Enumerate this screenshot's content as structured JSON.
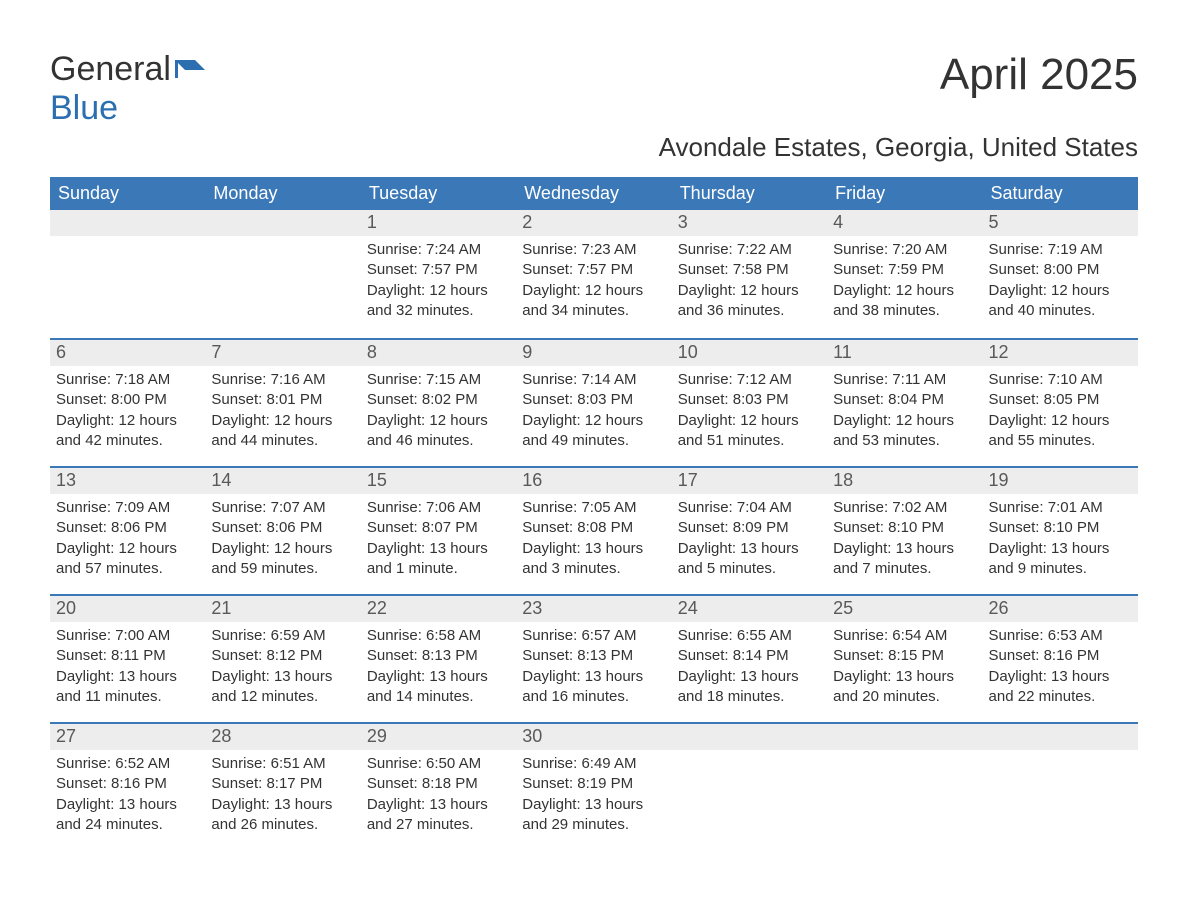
{
  "logo": {
    "text1": "General",
    "text2": "Blue"
  },
  "title": "April 2025",
  "location": "Avondale Estates, Georgia, United States",
  "colors": {
    "header_bg": "#3b78b8",
    "header_text": "#ffffff",
    "daynum_bg": "#ededed",
    "daynum_text": "#595959",
    "body_text": "#333333",
    "week_border": "#3b78b8",
    "page_bg": "#ffffff",
    "logo_accent": "#2b6fb0"
  },
  "day_headers": [
    "Sunday",
    "Monday",
    "Tuesday",
    "Wednesday",
    "Thursday",
    "Friday",
    "Saturday"
  ],
  "weeks": [
    [
      null,
      null,
      {
        "n": "1",
        "sr": "Sunrise: 7:24 AM",
        "ss": "Sunset: 7:57 PM",
        "dl": "Daylight: 12 hours and 32 minutes."
      },
      {
        "n": "2",
        "sr": "Sunrise: 7:23 AM",
        "ss": "Sunset: 7:57 PM",
        "dl": "Daylight: 12 hours and 34 minutes."
      },
      {
        "n": "3",
        "sr": "Sunrise: 7:22 AM",
        "ss": "Sunset: 7:58 PM",
        "dl": "Daylight: 12 hours and 36 minutes."
      },
      {
        "n": "4",
        "sr": "Sunrise: 7:20 AM",
        "ss": "Sunset: 7:59 PM",
        "dl": "Daylight: 12 hours and 38 minutes."
      },
      {
        "n": "5",
        "sr": "Sunrise: 7:19 AM",
        "ss": "Sunset: 8:00 PM",
        "dl": "Daylight: 12 hours and 40 minutes."
      }
    ],
    [
      {
        "n": "6",
        "sr": "Sunrise: 7:18 AM",
        "ss": "Sunset: 8:00 PM",
        "dl": "Daylight: 12 hours and 42 minutes."
      },
      {
        "n": "7",
        "sr": "Sunrise: 7:16 AM",
        "ss": "Sunset: 8:01 PM",
        "dl": "Daylight: 12 hours and 44 minutes."
      },
      {
        "n": "8",
        "sr": "Sunrise: 7:15 AM",
        "ss": "Sunset: 8:02 PM",
        "dl": "Daylight: 12 hours and 46 minutes."
      },
      {
        "n": "9",
        "sr": "Sunrise: 7:14 AM",
        "ss": "Sunset: 8:03 PM",
        "dl": "Daylight: 12 hours and 49 minutes."
      },
      {
        "n": "10",
        "sr": "Sunrise: 7:12 AM",
        "ss": "Sunset: 8:03 PM",
        "dl": "Daylight: 12 hours and 51 minutes."
      },
      {
        "n": "11",
        "sr": "Sunrise: 7:11 AM",
        "ss": "Sunset: 8:04 PM",
        "dl": "Daylight: 12 hours and 53 minutes."
      },
      {
        "n": "12",
        "sr": "Sunrise: 7:10 AM",
        "ss": "Sunset: 8:05 PM",
        "dl": "Daylight: 12 hours and 55 minutes."
      }
    ],
    [
      {
        "n": "13",
        "sr": "Sunrise: 7:09 AM",
        "ss": "Sunset: 8:06 PM",
        "dl": "Daylight: 12 hours and 57 minutes."
      },
      {
        "n": "14",
        "sr": "Sunrise: 7:07 AM",
        "ss": "Sunset: 8:06 PM",
        "dl": "Daylight: 12 hours and 59 minutes."
      },
      {
        "n": "15",
        "sr": "Sunrise: 7:06 AM",
        "ss": "Sunset: 8:07 PM",
        "dl": "Daylight: 13 hours and 1 minute."
      },
      {
        "n": "16",
        "sr": "Sunrise: 7:05 AM",
        "ss": "Sunset: 8:08 PM",
        "dl": "Daylight: 13 hours and 3 minutes."
      },
      {
        "n": "17",
        "sr": "Sunrise: 7:04 AM",
        "ss": "Sunset: 8:09 PM",
        "dl": "Daylight: 13 hours and 5 minutes."
      },
      {
        "n": "18",
        "sr": "Sunrise: 7:02 AM",
        "ss": "Sunset: 8:10 PM",
        "dl": "Daylight: 13 hours and 7 minutes."
      },
      {
        "n": "19",
        "sr": "Sunrise: 7:01 AM",
        "ss": "Sunset: 8:10 PM",
        "dl": "Daylight: 13 hours and 9 minutes."
      }
    ],
    [
      {
        "n": "20",
        "sr": "Sunrise: 7:00 AM",
        "ss": "Sunset: 8:11 PM",
        "dl": "Daylight: 13 hours and 11 minutes."
      },
      {
        "n": "21",
        "sr": "Sunrise: 6:59 AM",
        "ss": "Sunset: 8:12 PM",
        "dl": "Daylight: 13 hours and 12 minutes."
      },
      {
        "n": "22",
        "sr": "Sunrise: 6:58 AM",
        "ss": "Sunset: 8:13 PM",
        "dl": "Daylight: 13 hours and 14 minutes."
      },
      {
        "n": "23",
        "sr": "Sunrise: 6:57 AM",
        "ss": "Sunset: 8:13 PM",
        "dl": "Daylight: 13 hours and 16 minutes."
      },
      {
        "n": "24",
        "sr": "Sunrise: 6:55 AM",
        "ss": "Sunset: 8:14 PM",
        "dl": "Daylight: 13 hours and 18 minutes."
      },
      {
        "n": "25",
        "sr": "Sunrise: 6:54 AM",
        "ss": "Sunset: 8:15 PM",
        "dl": "Daylight: 13 hours and 20 minutes."
      },
      {
        "n": "26",
        "sr": "Sunrise: 6:53 AM",
        "ss": "Sunset: 8:16 PM",
        "dl": "Daylight: 13 hours and 22 minutes."
      }
    ],
    [
      {
        "n": "27",
        "sr": "Sunrise: 6:52 AM",
        "ss": "Sunset: 8:16 PM",
        "dl": "Daylight: 13 hours and 24 minutes."
      },
      {
        "n": "28",
        "sr": "Sunrise: 6:51 AM",
        "ss": "Sunset: 8:17 PM",
        "dl": "Daylight: 13 hours and 26 minutes."
      },
      {
        "n": "29",
        "sr": "Sunrise: 6:50 AM",
        "ss": "Sunset: 8:18 PM",
        "dl": "Daylight: 13 hours and 27 minutes."
      },
      {
        "n": "30",
        "sr": "Sunrise: 6:49 AM",
        "ss": "Sunset: 8:19 PM",
        "dl": "Daylight: 13 hours and 29 minutes."
      },
      null,
      null,
      null
    ]
  ]
}
